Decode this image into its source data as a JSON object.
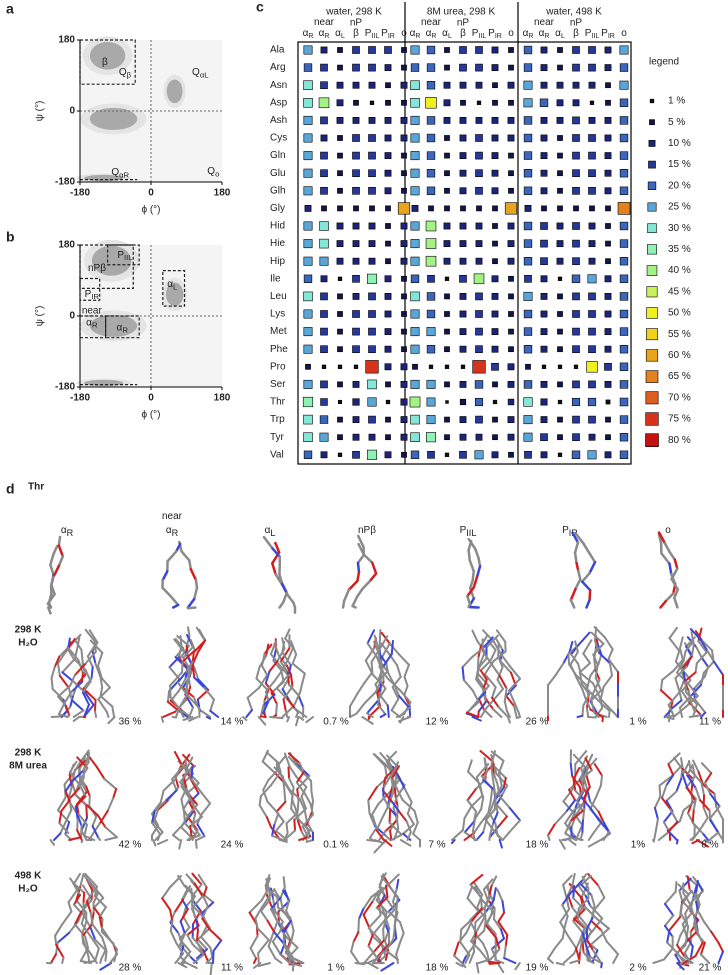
{
  "panel_labels": [
    "a",
    "b",
    "c",
    "d"
  ],
  "ramachandran": [
    {
      "xlabel": "ϕ (°)",
      "ylabel": "ψ (°)",
      "xlim": [
        -180,
        180
      ],
      "ylim": [
        -180,
        180
      ],
      "xticks": [
        -180,
        0,
        180
      ],
      "yticks": [
        -180,
        0,
        180
      ],
      "regions": [
        {
          "text": "β"
        },
        {
          "text": "Q",
          "sub": "β"
        },
        {
          "text": "Q",
          "sub": "αL"
        },
        {
          "text": "Q",
          "sub": "αR"
        },
        {
          "text": "Q",
          "sub": "o"
        }
      ]
    },
    {
      "xlabel": "ϕ (°)",
      "ylabel": "ψ (°)",
      "xlim": [
        -180,
        180
      ],
      "ylim": [
        -180,
        180
      ],
      "xticks": [
        -180,
        0,
        180
      ],
      "yticks": [
        -180,
        0,
        180
      ],
      "regions": [
        {
          "text": "nPβ"
        },
        {
          "text": "P",
          "sub": "IIL"
        },
        {
          "text": "P",
          "sub": "IR"
        },
        {
          "text": "α",
          "sub": "L"
        },
        {
          "pre": "near",
          "text": "α",
          "sub": "R"
        },
        {
          "text": "α",
          "sub": "R"
        }
      ]
    }
  ],
  "matrix": {
    "conditions": [
      "water, 298 K",
      "8M urea, 298 K",
      "water, 498 K"
    ],
    "states": [
      {
        "text": "α",
        "sub": "R"
      },
      {
        "pre": "near",
        "text": "α",
        "sub": "R"
      },
      {
        "text": "α",
        "sub": "L"
      },
      {
        "over": "nP",
        "text": "β"
      },
      {
        "text": "P",
        "sub": "IIL"
      },
      {
        "text": "P",
        "sub": "IR"
      },
      {
        "text": "o"
      }
    ],
    "residues": [
      "Ala",
      "Arg",
      "Asn",
      "Asp",
      "Ash",
      "Cys",
      "Gln",
      "Glu",
      "Glh",
      "Gly",
      "Hid",
      "Hie",
      "Hip",
      "Ile",
      "Leu",
      "Lys",
      "Met",
      "Phe",
      "Pro",
      "Ser",
      "Thr",
      "Trp",
      "Tyr",
      "Val"
    ],
    "values": [
      [
        [
          25,
          10,
          5,
          15,
          15,
          15,
          5
        ],
        [
          20,
          15,
          5,
          15,
          15,
          10,
          5
        ],
        [
          30,
          15,
          10,
          10,
          10,
          5,
          10
        ],
        [
          30,
          40,
          10,
          5,
          1,
          5,
          5
        ],
        [
          25,
          15,
          10,
          10,
          10,
          10,
          10
        ],
        [
          25,
          10,
          5,
          15,
          15,
          10,
          10
        ],
        [
          25,
          15,
          5,
          15,
          15,
          10,
          5
        ],
        [
          25,
          15,
          5,
          15,
          15,
          10,
          5
        ],
        [
          25,
          15,
          5,
          15,
          15,
          10,
          5
        ],
        [
          10,
          5,
          5,
          5,
          5,
          5,
          60
        ],
        [
          25,
          30,
          10,
          10,
          10,
          5,
          10
        ],
        [
          25,
          30,
          10,
          10,
          10,
          5,
          10
        ],
        [
          25,
          25,
          10,
          10,
          10,
          5,
          10
        ],
        [
          20,
          10,
          1,
          15,
          35,
          10,
          5
        ],
        [
          30,
          15,
          5,
          10,
          15,
          10,
          5
        ],
        [
          25,
          15,
          5,
          15,
          15,
          10,
          5
        ],
        [
          25,
          15,
          5,
          15,
          15,
          10,
          5
        ],
        [
          25,
          15,
          5,
          15,
          15,
          10,
          5
        ],
        [
          5,
          1,
          1,
          1,
          75,
          10,
          10
        ],
        [
          25,
          15,
          5,
          10,
          30,
          5,
          10
        ],
        [
          36,
          14,
          0.7,
          12,
          26,
          1,
          11
        ],
        [
          30,
          20,
          5,
          10,
          15,
          5,
          10
        ],
        [
          30,
          25,
          5,
          10,
          10,
          5,
          10
        ],
        [
          20,
          10,
          1,
          15,
          35,
          10,
          5
        ]
      ],
      [
        [
          25,
          20,
          5,
          15,
          15,
          10,
          5
        ],
        [
          20,
          20,
          5,
          15,
          15,
          10,
          5
        ],
        [
          30,
          20,
          10,
          10,
          10,
          5,
          10
        ],
        [
          30,
          50,
          10,
          5,
          1,
          5,
          5
        ],
        [
          25,
          20,
          10,
          10,
          10,
          10,
          10
        ],
        [
          25,
          20,
          5,
          10,
          15,
          10,
          10
        ],
        [
          25,
          20,
          5,
          10,
          15,
          10,
          5
        ],
        [
          25,
          20,
          5,
          10,
          15,
          10,
          5
        ],
        [
          25,
          20,
          5,
          10,
          15,
          10,
          5
        ],
        [
          10,
          5,
          5,
          5,
          5,
          5,
          60
        ],
        [
          25,
          40,
          10,
          10,
          10,
          5,
          10
        ],
        [
          25,
          40,
          10,
          10,
          10,
          5,
          10
        ],
        [
          25,
          40,
          10,
          10,
          10,
          5,
          10
        ],
        [
          20,
          15,
          1,
          15,
          40,
          10,
          5
        ],
        [
          30,
          20,
          5,
          10,
          15,
          10,
          5
        ],
        [
          25,
          20,
          5,
          10,
          15,
          10,
          5
        ],
        [
          25,
          25,
          5,
          10,
          15,
          10,
          5
        ],
        [
          25,
          20,
          5,
          10,
          15,
          10,
          5
        ],
        [
          5,
          1,
          1,
          1,
          75,
          15,
          10
        ],
        [
          25,
          25,
          5,
          10,
          20,
          5,
          10
        ],
        [
          42,
          24,
          0.1,
          7,
          18,
          1,
          8
        ],
        [
          30,
          25,
          5,
          10,
          15,
          5,
          10
        ],
        [
          30,
          35,
          5,
          10,
          10,
          5,
          10
        ],
        [
          20,
          15,
          1,
          15,
          25,
          10,
          5
        ]
      ],
      [
        [
          20,
          10,
          5,
          15,
          15,
          10,
          25
        ],
        [
          20,
          10,
          5,
          15,
          15,
          10,
          20
        ],
        [
          25,
          10,
          10,
          10,
          10,
          5,
          25
        ],
        [
          25,
          20,
          10,
          10,
          1,
          5,
          20
        ],
        [
          20,
          10,
          10,
          15,
          10,
          10,
          20
        ],
        [
          20,
          10,
          5,
          15,
          15,
          10,
          20
        ],
        [
          20,
          10,
          5,
          15,
          15,
          10,
          20
        ],
        [
          20,
          10,
          5,
          15,
          15,
          10,
          20
        ],
        [
          20,
          10,
          5,
          15,
          15,
          10,
          20
        ],
        [
          10,
          5,
          5,
          5,
          5,
          5,
          65
        ],
        [
          20,
          15,
          10,
          15,
          10,
          5,
          20
        ],
        [
          20,
          15,
          10,
          15,
          10,
          5,
          20
        ],
        [
          20,
          15,
          10,
          15,
          10,
          5,
          20
        ],
        [
          15,
          10,
          1,
          20,
          25,
          10,
          20
        ],
        [
          25,
          10,
          5,
          15,
          15,
          10,
          20
        ],
        [
          20,
          10,
          5,
          15,
          15,
          10,
          20
        ],
        [
          20,
          10,
          5,
          15,
          15,
          10,
          20
        ],
        [
          20,
          10,
          5,
          15,
          15,
          10,
          20
        ],
        [
          5,
          1,
          1,
          1,
          50,
          15,
          20
        ],
        [
          20,
          10,
          5,
          15,
          15,
          10,
          20
        ],
        [
          28,
          11,
          1,
          18,
          19,
          2,
          21
        ],
        [
          25,
          10,
          5,
          15,
          15,
          5,
          20
        ],
        [
          25,
          15,
          5,
          15,
          10,
          5,
          20
        ],
        [
          15,
          10,
          1,
          20,
          25,
          10,
          20
        ]
      ]
    ],
    "legend_title": "legend",
    "legend": [
      {
        "value": 1,
        "label": "1 %",
        "color": "#111111"
      },
      {
        "value": 5,
        "label": "5 %",
        "color": "#15154a"
      },
      {
        "value": 10,
        "label": "10 %",
        "color": "#1c2378"
      },
      {
        "value": 15,
        "label": "15 %",
        "color": "#26389c"
      },
      {
        "value": 20,
        "label": "20 %",
        "color": "#3c66bb"
      },
      {
        "value": 25,
        "label": "25 %",
        "color": "#5aa6d8"
      },
      {
        "value": 30,
        "label": "30 %",
        "color": "#84e6d6"
      },
      {
        "value": 35,
        "label": "35 %",
        "color": "#8ef2b4"
      },
      {
        "value": 40,
        "label": "40 %",
        "color": "#a4f186"
      },
      {
        "value": 45,
        "label": "45 %",
        "color": "#c9f25a"
      },
      {
        "value": 50,
        "label": "50 %",
        "color": "#f0f020"
      },
      {
        "value": 55,
        "label": "55 %",
        "color": "#f0d21e"
      },
      {
        "value": 60,
        "label": "60 %",
        "color": "#e8a41e"
      },
      {
        "value": 65,
        "label": "65 %",
        "color": "#e2821e"
      },
      {
        "value": 70,
        "label": "70 %",
        "color": "#dd5e1e"
      },
      {
        "value": 75,
        "label": "75 %",
        "color": "#d6321c"
      },
      {
        "value": 80,
        "label": "80 %",
        "color": "#c41212"
      }
    ]
  },
  "structures": {
    "residue": "Thr",
    "rows": [
      {
        "label": [
          "298 K",
          "H₂O"
        ],
        "percent": [
          "36 %",
          "14 %",
          "0.7 %",
          "12 %",
          "26 %",
          "1 %",
          "11 %"
        ]
      },
      {
        "label": [
          "298 K",
          "8M urea"
        ],
        "percent": [
          "42 %",
          "24 %",
          "0.1 %",
          "7 %",
          "18 %",
          "1%",
          "8 %"
        ]
      },
      {
        "label": [
          "498 K",
          "H₂O"
        ],
        "percent": [
          "28 %",
          "11 %",
          "1 %",
          "18 %",
          "19 %",
          "2 %",
          "21 %"
        ]
      }
    ]
  }
}
